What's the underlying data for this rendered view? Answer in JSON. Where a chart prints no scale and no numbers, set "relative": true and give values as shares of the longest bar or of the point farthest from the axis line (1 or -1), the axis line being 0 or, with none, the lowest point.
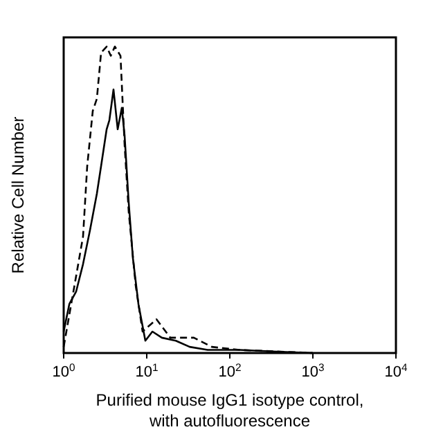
{
  "chart_data": {
    "type": "line",
    "relative": true,
    "log": "x",
    "xlabel": "Purified mouse IgG1 isotype control,\nwith autofluorescence",
    "ylabel": "Relative Cell Number",
    "xlim": [
      1,
      10000
    ],
    "xticks": [
      {
        "value": 1,
        "label": "10$^{0}$"
      },
      {
        "value": 10,
        "label": "10$^{1}$"
      },
      {
        "value": 100,
        "label": "10$^{2}$"
      },
      {
        "value": 1000,
        "label": "10$^{3}$"
      },
      {
        "value": 10000,
        "label": "10$^{4}$"
      }
    ],
    "tick_labels": "x",
    "marker": "none",
    "series": [
      {
        "color": "#000000",
        "line_style": "dashed",
        "x": [
          1,
          1.41,
          1.71,
          1.92,
          2.24,
          2.51,
          2.82,
          3.29,
          3.69,
          4.13,
          4.83,
          5.41,
          6.07,
          7.36,
          8.91,
          13.1,
          19.2,
          36.9,
          60.7,
          131,
          369,
          1000
        ],
        "values": [
          0.02,
          0.25,
          0.38,
          0.61,
          0.79,
          0.83,
          0.98,
          1,
          0.97,
          1,
          0.97,
          0.68,
          0.46,
          0.22,
          0.07,
          0.11,
          0.05,
          0.05,
          0.02,
          0.01,
          0.005,
          0
        ]
      },
      {
        "color": "#000000",
        "line_style": "solid",
        "x": [
          1,
          1.17,
          1.41,
          1.71,
          2.07,
          2.51,
          2.82,
          3.29,
          3.55,
          3.98,
          4.47,
          5.01,
          5.41,
          6.07,
          6.81,
          7.94,
          9.62,
          11.7,
          15.2,
          22.4,
          32.9,
          54.1,
          131,
          329,
          1000
        ],
        "values": [
          0.07,
          0.16,
          0.2,
          0.29,
          0.4,
          0.52,
          0.61,
          0.73,
          0.76,
          0.86,
          0.73,
          0.8,
          0.71,
          0.49,
          0.31,
          0.16,
          0.04,
          0.07,
          0.05,
          0.04,
          0.02,
          0.01,
          0.01,
          0.005,
          0
        ]
      }
    ]
  }
}
